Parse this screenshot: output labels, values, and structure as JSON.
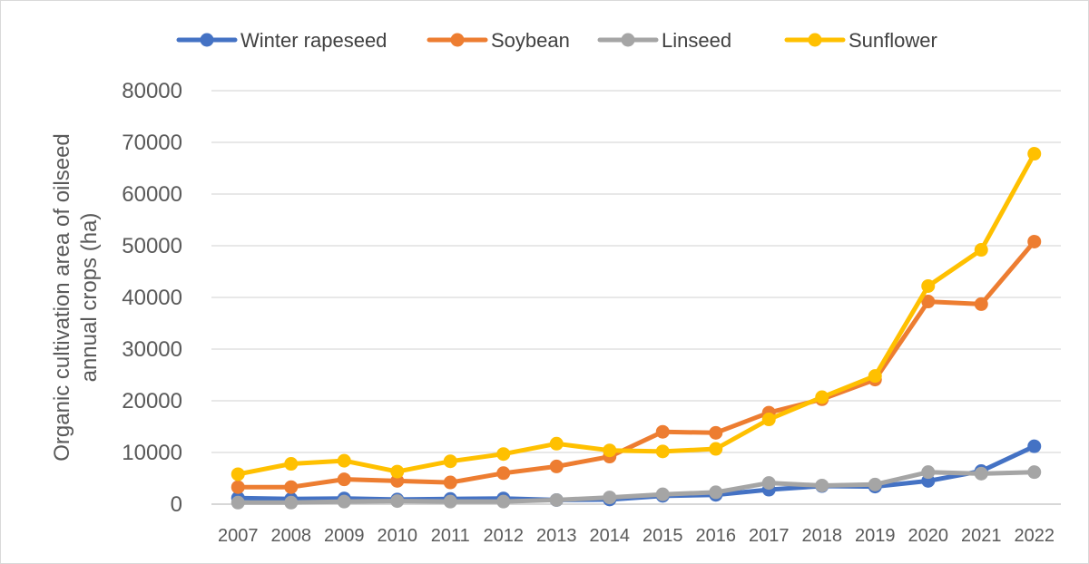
{
  "chart_data": {
    "type": "line",
    "title": "",
    "xlabel": "",
    "ylabel": "Organic cultivation area of oilseed annual crops (ha)",
    "ylabel_lines": [
      "Organic cultivation area of oilseed",
      "annual crops (ha)"
    ],
    "ylim": [
      0,
      80000
    ],
    "yticks": [
      0,
      10000,
      20000,
      30000,
      40000,
      50000,
      60000,
      70000,
      80000
    ],
    "grid": true,
    "legend_position": "top",
    "categories": [
      "2007",
      "2008",
      "2009",
      "2010",
      "2011",
      "2012",
      "2013",
      "2014",
      "2015",
      "2016",
      "2017",
      "2018",
      "2019",
      "2020",
      "2021",
      "2022"
    ],
    "series": [
      {
        "name": "Winter rapeseed",
        "color": "#4472C4",
        "values": [
          1200,
          1000,
          1100,
          900,
          1000,
          1100,
          800,
          900,
          1600,
          1800,
          2800,
          3500,
          3400,
          4500,
          6400,
          11200
        ]
      },
      {
        "name": "Soybean",
        "color": "#ED7D31",
        "values": [
          3300,
          3300,
          4800,
          4500,
          4200,
          6000,
          7300,
          9200,
          14000,
          13800,
          17700,
          20300,
          24100,
          39200,
          38700,
          50800
        ]
      },
      {
        "name": "Linseed",
        "color": "#A5A5A5",
        "values": [
          300,
          300,
          500,
          600,
          500,
          500,
          800,
          1300,
          1900,
          2300,
          4100,
          3600,
          3800,
          6200,
          5900,
          6200
        ]
      },
      {
        "name": "Sunflower",
        "color": "#FFC000",
        "values": [
          5800,
          7800,
          8400,
          6300,
          8300,
          9700,
          11700,
          10400,
          10200,
          10700,
          16400,
          20700,
          24800,
          42200,
          49200,
          67800
        ]
      }
    ]
  }
}
